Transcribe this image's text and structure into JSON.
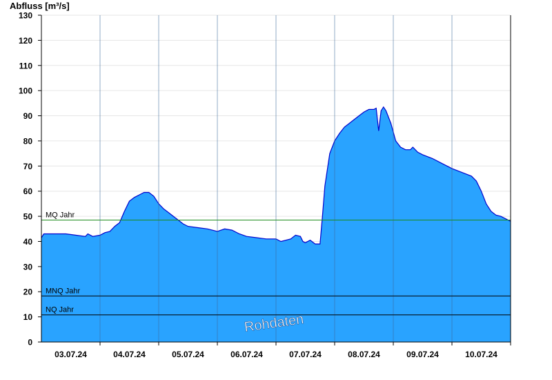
{
  "chart_data": {
    "type": "area",
    "title": "",
    "ylabel": "Abfluss [m³/s]",
    "xlabel": "",
    "ylim": [
      0,
      130
    ],
    "y_ticks": [
      0,
      10,
      20,
      30,
      40,
      50,
      60,
      70,
      80,
      90,
      100,
      110,
      120,
      130
    ],
    "x_range": [
      "2024-07-02T12:00",
      "2024-07-10T12:00"
    ],
    "x_ticks": [
      {
        "label": "03.07.24",
        "date": "2024-07-03"
      },
      {
        "label": "04.07.24",
        "date": "2024-07-04"
      },
      {
        "label": "05.07.24",
        "date": "2024-07-05"
      },
      {
        "label": "06.07.24",
        "date": "2024-07-06"
      },
      {
        "label": "07.07.24",
        "date": "2024-07-07"
      },
      {
        "label": "08.07.24",
        "date": "2024-07-08"
      },
      {
        "label": "09.07.24",
        "date": "2024-07-09"
      },
      {
        "label": "10.07.24",
        "date": "2024-07-10"
      }
    ],
    "reference_lines": [
      {
        "name": "MQ Jahr",
        "value": 48.5,
        "color": "#1a8a1a"
      },
      {
        "name": "MNQ Jahr",
        "value": 18.3,
        "color": "#000000"
      },
      {
        "name": "NQ Jahr",
        "value": 10.8,
        "color": "#000000"
      }
    ],
    "series": [
      {
        "color": "#29a3ff",
        "line_color": "#0000cc",
        "points": [
          [
            "2024-07-02T12:00",
            41.5
          ],
          [
            "2024-07-02T13:00",
            43.0
          ],
          [
            "2024-07-02T16:00",
            43.0
          ],
          [
            "2024-07-02T22:00",
            43.0
          ],
          [
            "2024-07-03T02:00",
            42.5
          ],
          [
            "2024-07-03T06:00",
            42.0
          ],
          [
            "2024-07-03T07:00",
            43.0
          ],
          [
            "2024-07-03T09:00",
            42.0
          ],
          [
            "2024-07-03T12:00",
            42.5
          ],
          [
            "2024-07-03T14:00",
            43.5
          ],
          [
            "2024-07-03T16:00",
            44.0
          ],
          [
            "2024-07-03T18:00",
            46.0
          ],
          [
            "2024-07-03T20:00",
            47.5
          ],
          [
            "2024-07-03T22:00",
            52.0
          ],
          [
            "2024-07-04T00:00",
            56.0
          ],
          [
            "2024-07-04T02:00",
            57.5
          ],
          [
            "2024-07-04T04:00",
            58.5
          ],
          [
            "2024-07-04T06:00",
            59.5
          ],
          [
            "2024-07-04T08:00",
            59.5
          ],
          [
            "2024-07-04T10:00",
            58.0
          ],
          [
            "2024-07-04T12:00",
            55.0
          ],
          [
            "2024-07-04T14:00",
            53.0
          ],
          [
            "2024-07-04T16:00",
            51.5
          ],
          [
            "2024-07-04T18:00",
            50.0
          ],
          [
            "2024-07-04T20:00",
            48.5
          ],
          [
            "2024-07-04T22:00",
            47.0
          ],
          [
            "2024-07-05T00:00",
            46.0
          ],
          [
            "2024-07-05T04:00",
            45.5
          ],
          [
            "2024-07-05T08:00",
            45.0
          ],
          [
            "2024-07-05T12:00",
            44.0
          ],
          [
            "2024-07-05T15:00",
            45.0
          ],
          [
            "2024-07-05T18:00",
            44.5
          ],
          [
            "2024-07-05T21:00",
            43.0
          ],
          [
            "2024-07-06T00:00",
            42.0
          ],
          [
            "2024-07-06T04:00",
            41.5
          ],
          [
            "2024-07-06T08:00",
            41.0
          ],
          [
            "2024-07-06T12:00",
            41.0
          ],
          [
            "2024-07-06T14:00",
            40.0
          ],
          [
            "2024-07-06T18:00",
            41.0
          ],
          [
            "2024-07-06T20:00",
            42.5
          ],
          [
            "2024-07-06T22:00",
            42.0
          ],
          [
            "2024-07-06T23:00",
            40.0
          ],
          [
            "2024-07-07T00:00",
            39.5
          ],
          [
            "2024-07-07T02:00",
            40.5
          ],
          [
            "2024-07-07T04:00",
            39.0
          ],
          [
            "2024-07-07T06:00",
            39.0
          ],
          [
            "2024-07-07T07:00",
            50.0
          ],
          [
            "2024-07-07T08:00",
            62.0
          ],
          [
            "2024-07-07T10:00",
            75.0
          ],
          [
            "2024-07-07T12:00",
            80.0
          ],
          [
            "2024-07-07T14:00",
            83.0
          ],
          [
            "2024-07-07T16:00",
            85.5
          ],
          [
            "2024-07-07T18:00",
            87.0
          ],
          [
            "2024-07-07T20:00",
            88.5
          ],
          [
            "2024-07-07T22:00",
            90.0
          ],
          [
            "2024-07-08T00:00",
            91.5
          ],
          [
            "2024-07-08T02:00",
            92.5
          ],
          [
            "2024-07-08T04:00",
            92.5
          ],
          [
            "2024-07-08T05:00",
            93.0
          ],
          [
            "2024-07-08T06:00",
            84.0
          ],
          [
            "2024-07-08T07:00",
            92.0
          ],
          [
            "2024-07-08T08:00",
            93.5
          ],
          [
            "2024-07-08T09:00",
            92.0
          ],
          [
            "2024-07-08T11:00",
            87.0
          ],
          [
            "2024-07-08T13:00",
            80.0
          ],
          [
            "2024-07-08T15:00",
            77.5
          ],
          [
            "2024-07-08T17:00",
            76.5
          ],
          [
            "2024-07-08T19:00",
            76.5
          ],
          [
            "2024-07-08T20:00",
            77.5
          ],
          [
            "2024-07-08T22:00",
            75.5
          ],
          [
            "2024-07-09T00:00",
            74.5
          ],
          [
            "2024-07-09T04:00",
            73.0
          ],
          [
            "2024-07-09T08:00",
            71.0
          ],
          [
            "2024-07-09T12:00",
            69.0
          ],
          [
            "2024-07-09T16:00",
            67.5
          ],
          [
            "2024-07-09T20:00",
            66.0
          ],
          [
            "2024-07-09T22:00",
            64.0
          ],
          [
            "2024-07-10T00:00",
            60.0
          ],
          [
            "2024-07-10T02:00",
            55.0
          ],
          [
            "2024-07-10T04:00",
            52.0
          ],
          [
            "2024-07-10T06:00",
            50.5
          ],
          [
            "2024-07-10T08:00",
            50.0
          ],
          [
            "2024-07-10T10:00",
            49.0
          ],
          [
            "2024-07-10T12:00",
            48.0
          ]
        ]
      }
    ],
    "watermark": "Rohdaten"
  }
}
